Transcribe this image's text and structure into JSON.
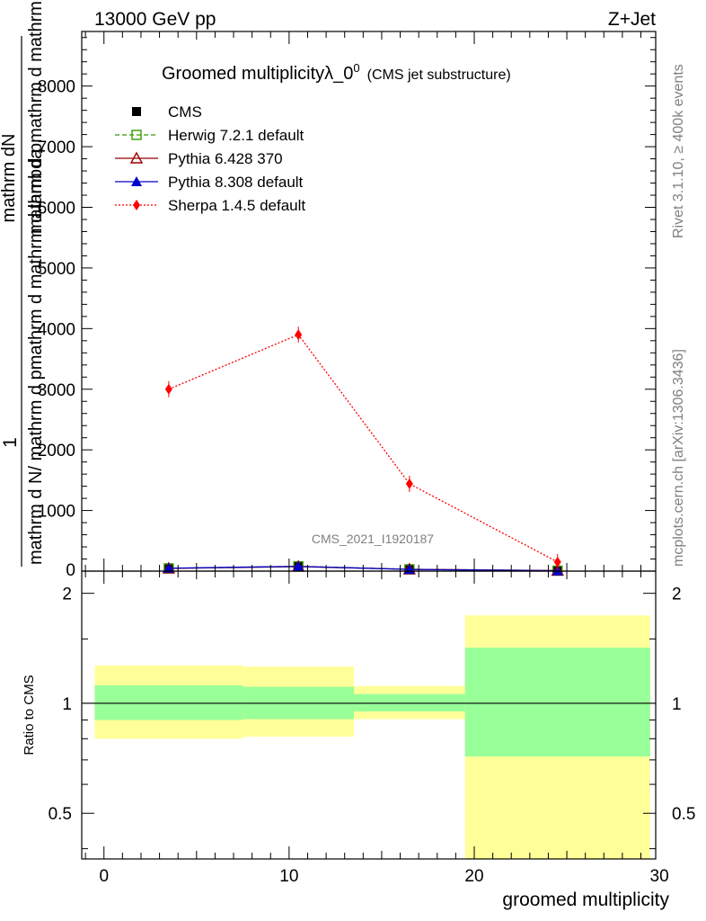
{
  "header": {
    "energy_label": "13000 GeV pp",
    "process_label": "Z+Jet"
  },
  "side_text": {
    "rivet": "Rivet 3.1.10, ≥ 400k events",
    "mcplots": "mcplots.cern.ch [arXiv:1306.3436]"
  },
  "chart_data": [
    {
      "type": "line",
      "title": "Groomed multiplicityλ_0",
      "title_superscript": "0",
      "subtitle": "(CMS jet substructure)",
      "analysis_id": "CMS_2021_I1920187",
      "ylabel_top": "1",
      "ylabel_top_part2": "mathrm d N",
      "ylabel_num": "mathrm dN",
      "ylabel_den": "mathrm d p",
      "ylabel_full": "mathrm d N / mathrm d p_mathrm d mathrm d p_mathrm d mathrm d lambda",
      "ylabel_mid1": "mathrm d pmathrm d mathrm d lambda",
      "ylabel_mid2": "mathrm d pmathrm d mathrm d lambda",
      "ylabel_end": "mathrm d N/ mathrm d pmathrm d mathrm d lambda",
      "x": [
        3.5,
        10.5,
        16.5,
        24.5
      ],
      "xlim": [
        -1.2,
        29.8
      ],
      "ylim": [
        0,
        8900
      ],
      "yticks": [
        1000,
        2000,
        3000,
        4000,
        5000,
        6000,
        7000,
        8000
      ],
      "ytick_labels": [
        "1000",
        "2000",
        "3000",
        "4000",
        "5000",
        "6000",
        "7000",
        "8000"
      ],
      "legend_position": "top-left",
      "series": [
        {
          "name": "CMS",
          "values": [
            45,
            75,
            30,
            8
          ],
          "color": "#000000",
          "marker": "square-filled",
          "line": "none"
        },
        {
          "name": "Herwig 7.2.1 default",
          "values": [
            45,
            80,
            30,
            8
          ],
          "color": "#339900",
          "marker": "square-open",
          "line": "dashed"
        },
        {
          "name": "Pythia 6.428 370",
          "values": [
            45,
            75,
            30,
            8
          ],
          "color": "#990000",
          "marker": "triangle-open",
          "line": "solid"
        },
        {
          "name": "Pythia 8.308 default",
          "values": [
            48,
            78,
            28,
            6
          ],
          "color": "#0000cc",
          "marker": "triangle-filled",
          "line": "solid"
        },
        {
          "name": "Sherpa 1.4.5 default",
          "values": [
            3000,
            3900,
            1440,
            150
          ],
          "color": "#ff0000",
          "marker": "diamond-filled",
          "line": "dotted"
        }
      ]
    },
    {
      "type": "area",
      "ylabel": "Ratio to CMS",
      "xlabel": "groomed multiplicity",
      "scale": "log",
      "ylim": [
        0.375,
        2.3
      ],
      "yticks": [
        0.5,
        1,
        2
      ],
      "ytick_labels": [
        "0.5",
        "1",
        "2"
      ],
      "xticks": [
        0,
        10,
        20,
        30
      ],
      "xtick_labels": [
        "0",
        "10",
        "20",
        "30"
      ],
      "reference_line": 1,
      "bins": [
        {
          "x_low": -0.5,
          "x_high": 7.5,
          "yellow": [
            0.8,
            1.27
          ],
          "green": [
            0.9,
            1.12
          ]
        },
        {
          "x_low": 7.5,
          "x_high": 13.5,
          "yellow": [
            0.81,
            1.26
          ],
          "green": [
            0.905,
            1.11
          ]
        },
        {
          "x_low": 13.5,
          "x_high": 19.5,
          "yellow": [
            0.905,
            1.115
          ],
          "green": [
            0.95,
            1.06
          ]
        },
        {
          "x_low": 19.5,
          "x_high": 29.5,
          "yellow": [
            0.375,
            1.74
          ],
          "green": [
            0.715,
            1.42
          ]
        }
      ],
      "band_colors": {
        "yellow": "#ffff99",
        "green": "#99ff99"
      }
    }
  ]
}
